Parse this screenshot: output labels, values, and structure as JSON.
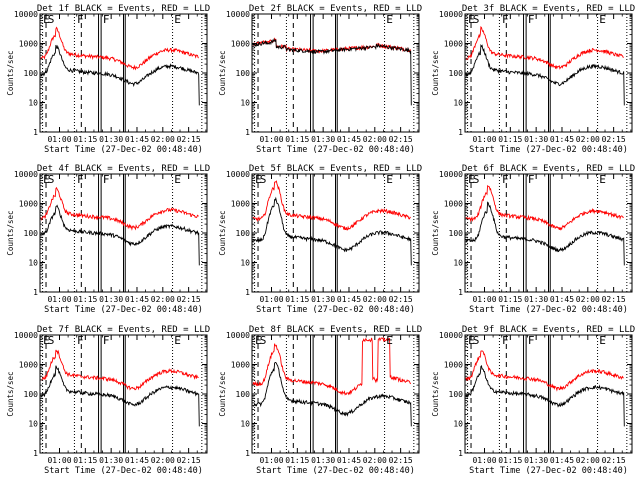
{
  "panels": [
    {
      "id": 1,
      "title": "Det 1f BLACK = Events, RED = LLD",
      "flags": [
        "E",
        "S",
        "F",
        "F",
        "E"
      ],
      "kind": "std",
      "peak": 1500,
      "bump": 1.0
    },
    {
      "id": 2,
      "title": "Det 2f BLACK = Events, RED = LLD",
      "flags": [
        "",
        "",
        "",
        "",
        "E"
      ],
      "kind": "flat",
      "peak": 1000,
      "bump": 1.0
    },
    {
      "id": 3,
      "title": "Det 3f BLACK = Events, RED = LLD",
      "flags": [
        "E",
        "S",
        "F",
        "F",
        "E"
      ],
      "kind": "std",
      "peak": 1500,
      "bump": 1.0
    },
    {
      "id": 4,
      "title": "Det 4f BLACK = Events, RED = LLD",
      "flags": [
        "E",
        "S",
        "F",
        "F",
        "E"
      ],
      "kind": "std",
      "peak": 1500,
      "bump": 1.0
    },
    {
      "id": 5,
      "title": "Det 5f BLACK = Events, RED = LLD",
      "flags": [
        "E",
        "S",
        "",
        "",
        "E"
      ],
      "kind": "low",
      "peak": 3000,
      "bump": 1.0
    },
    {
      "id": 6,
      "title": "Det 6f BLACK = Events, RED = LLD",
      "flags": [
        "E",
        "S",
        "F",
        "F",
        "E"
      ],
      "kind": "low",
      "peak": 2000,
      "bump": 1.0
    },
    {
      "id": 7,
      "title": "Det 7f BLACK = Events, RED = LLD",
      "flags": [
        "E",
        "S",
        "F",
        "F",
        "E"
      ],
      "kind": "std",
      "peak": 1500,
      "bump": 1.0
    },
    {
      "id": 8,
      "title": "Det 8f BLACK = Events, RED = LLD",
      "flags": [
        "E",
        "S",
        "",
        "",
        "E"
      ],
      "kind": "spike",
      "peak": 2500,
      "bump": 1.0
    },
    {
      "id": 9,
      "title": "Det 9f BLACK = Events, RED = LLD",
      "flags": [
        "E",
        "S",
        "F",
        "F",
        "E"
      ],
      "kind": "std",
      "peak": 1500,
      "bump": 1.0
    }
  ],
  "chart_data": {
    "type": "line",
    "x_axis_label": "Start Time (27-Dec-02 00:48:40)",
    "y_axis_label": "Counts/sec",
    "x_ticks": [
      "01:00",
      "01:15",
      "01:30",
      "01:45",
      "02:00",
      "02:15"
    ],
    "x_tick_minutes": [
      11.33,
      26.33,
      41.33,
      56.33,
      71.33,
      86.33
    ],
    "x_range_minutes": [
      0,
      97
    ],
    "y_scale": "log",
    "y_ticks": [
      "1",
      "10",
      "100",
      "1000",
      "10000"
    ],
    "y_range": [
      1,
      10000
    ],
    "series": [
      {
        "name": "Events",
        "color": "#000000"
      },
      {
        "name": "LLD",
        "color": "#ff0000"
      }
    ],
    "markers_minutes": {
      "dotted": [
        1.5,
        20.0,
        77.0,
        94.0
      ],
      "dashed": [
        3.5,
        24.0
      ],
      "solid": [
        34.0,
        35.5,
        48.5,
        49.5
      ]
    }
  }
}
